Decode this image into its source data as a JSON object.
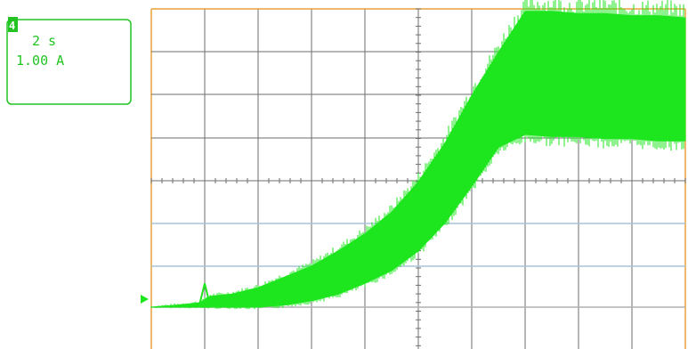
{
  "readout": {
    "channel": "4",
    "timebase": "2 s",
    "scale": "1.00 A"
  },
  "colors": {
    "trace": "#1ee61e",
    "readout": "#22c422",
    "grid": "#6e6e6e",
    "ref_line": "#a8c4dc",
    "frame": "#e8a23c",
    "background": "#ffffff"
  },
  "chart_data": {
    "type": "line",
    "title": "",
    "xlabel": "",
    "ylabel": "",
    "x_divisions": 10,
    "y_divisions": 8,
    "grid": true,
    "x_unit_per_div": "2 s",
    "y_unit_per_div": "1.00 A",
    "xlim": [
      0,
      20
    ],
    "ylim": [
      0,
      8
    ],
    "series": [
      {
        "x": [
          0,
          1,
          1.8,
          2.2,
          3,
          4,
          5,
          6,
          7,
          8,
          9,
          10,
          11,
          12,
          13,
          14,
          15,
          16,
          17,
          18,
          19,
          20
        ],
        "upper": [
          0,
          0.05,
          0.1,
          0.25,
          0.3,
          0.45,
          0.7,
          0.95,
          1.3,
          1.7,
          2.2,
          2.9,
          3.8,
          4.9,
          5.9,
          6.85,
          6.85,
          6.8,
          6.8,
          6.75,
          6.75,
          6.7
        ],
        "lower": [
          0,
          0,
          0,
          0,
          0,
          0,
          0.05,
          0.15,
          0.3,
          0.55,
          0.85,
          1.3,
          1.95,
          2.8,
          3.7,
          4.0,
          3.95,
          3.95,
          3.9,
          3.9,
          3.85,
          3.85
        ]
      }
    ]
  }
}
